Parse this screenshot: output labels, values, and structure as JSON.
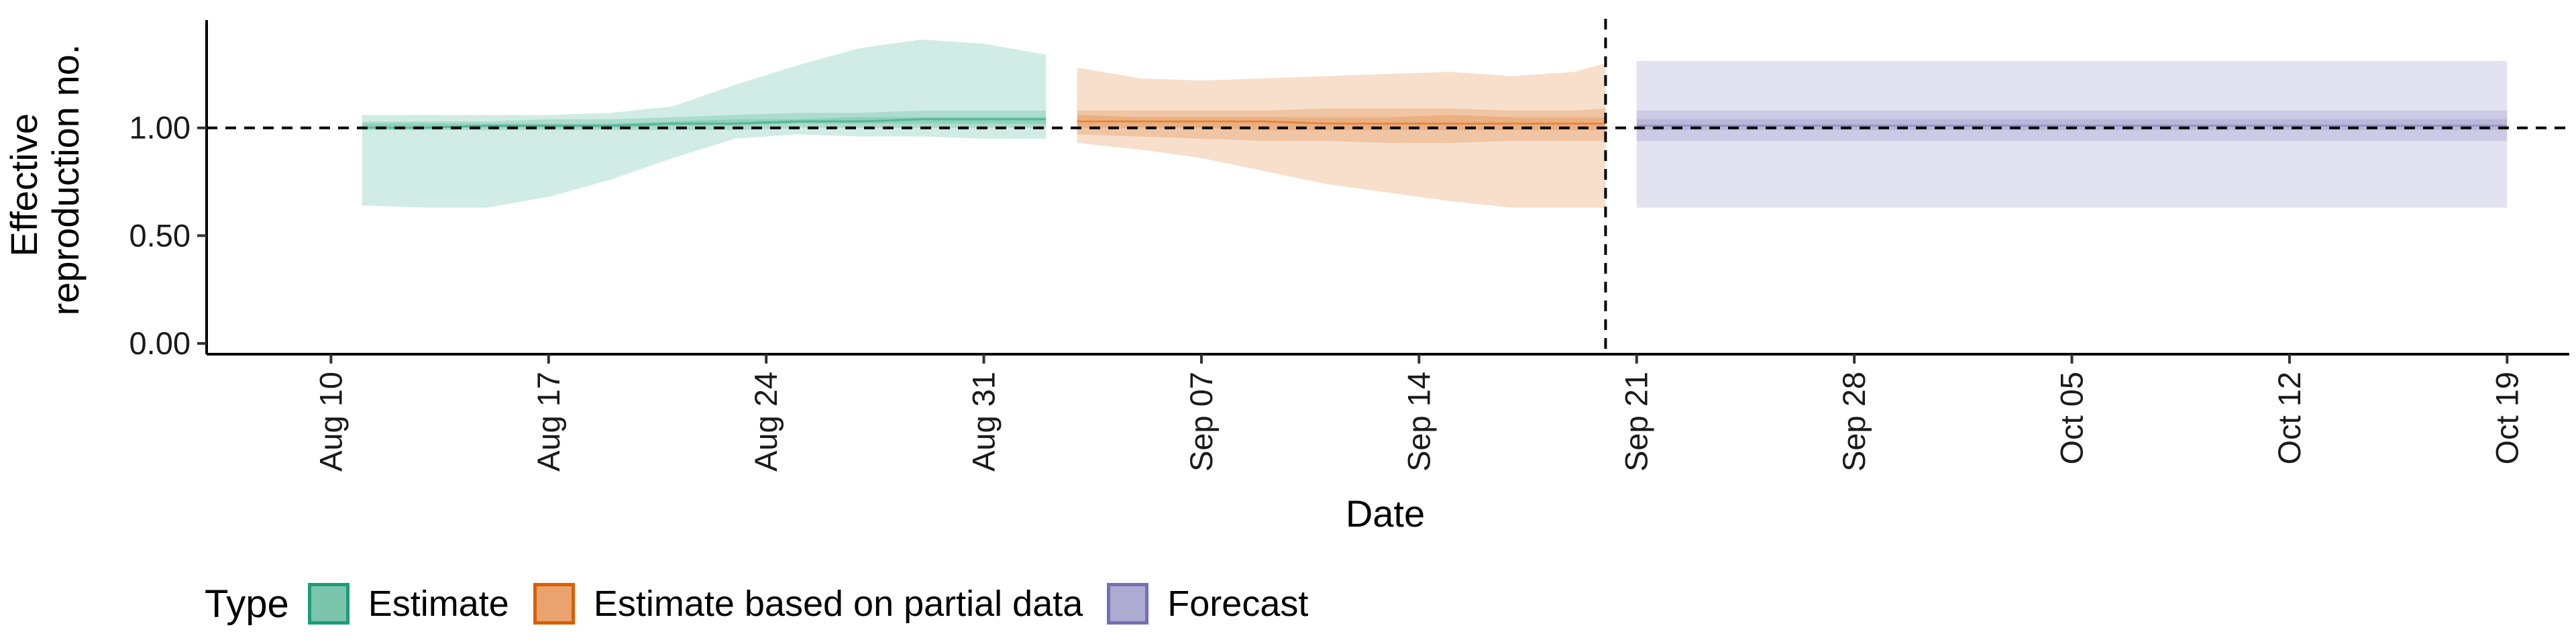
{
  "chart_data": {
    "type": "area",
    "xlabel": "Date",
    "ylabel_lines": [
      "Effective",
      "reproduction no."
    ],
    "yticks": [
      "0.00",
      "0.50",
      "1.00"
    ],
    "ytick_values": [
      0,
      0.5,
      1.0
    ],
    "ylim": [
      -0.05,
      1.5
    ],
    "xlim": [
      "2020-08-06",
      "2020-10-21"
    ],
    "xticks": [
      {
        "date": "2020-08-10",
        "label": "Aug 10"
      },
      {
        "date": "2020-08-17",
        "label": "Aug 17"
      },
      {
        "date": "2020-08-24",
        "label": "Aug 24"
      },
      {
        "date": "2020-08-31",
        "label": "Aug 31"
      },
      {
        "date": "2020-09-07",
        "label": "Sep 07"
      },
      {
        "date": "2020-09-14",
        "label": "Sep 14"
      },
      {
        "date": "2020-09-21",
        "label": "Sep 21"
      },
      {
        "date": "2020-09-28",
        "label": "Sep 28"
      },
      {
        "date": "2020-10-05",
        "label": "Oct 05"
      },
      {
        "date": "2020-10-12",
        "label": "Oct 12"
      },
      {
        "date": "2020-10-19",
        "label": "Oct 19"
      }
    ],
    "reference_hline": 1.0,
    "reference_vline": "2020-09-20",
    "legend": {
      "title": "Type",
      "position": "bottom-left",
      "items": [
        {
          "label": "Estimate",
          "fill": "#7cc5ad",
          "border": "#1b9e77"
        },
        {
          "label": "Estimate based on partial data",
          "fill": "#eaa36e",
          "border": "#d95f02"
        },
        {
          "label": "Forecast",
          "fill": "#aeabd2",
          "border": "#7570b3"
        }
      ]
    },
    "series": [
      {
        "name": "Estimate",
        "color": "#1b9e77",
        "x": [
          "2020-08-11",
          "2020-08-13",
          "2020-08-15",
          "2020-08-17",
          "2020-08-19",
          "2020-08-21",
          "2020-08-23",
          "2020-08-25",
          "2020-08-27",
          "2020-08-29",
          "2020-08-31",
          "2020-09-02"
        ],
        "median": [
          1.0,
          1.0,
          1.01,
          1.01,
          1.01,
          1.02,
          1.02,
          1.03,
          1.03,
          1.04,
          1.04,
          1.04
        ],
        "lower90": [
          0.64,
          0.63,
          0.63,
          0.68,
          0.76,
          0.86,
          0.95,
          0.97,
          0.96,
          0.96,
          0.95,
          0.95
        ],
        "upper90": [
          1.06,
          1.06,
          1.06,
          1.06,
          1.07,
          1.1,
          1.2,
          1.29,
          1.37,
          1.41,
          1.39,
          1.34
        ],
        "lower50": [
          0.99,
          0.99,
          0.99,
          0.99,
          0.99,
          0.99,
          0.99,
          1.0,
          1.0,
          1.0,
          1.0,
          1.0
        ],
        "upper50": [
          1.03,
          1.03,
          1.03,
          1.04,
          1.04,
          1.05,
          1.06,
          1.07,
          1.07,
          1.08,
          1.08,
          1.08
        ],
        "lower20": [
          1.0,
          1.0,
          1.0,
          1.0,
          1.0,
          1.01,
          1.01,
          1.02,
          1.02,
          1.02,
          1.02,
          1.02
        ],
        "upper20": [
          1.02,
          1.02,
          1.02,
          1.02,
          1.02,
          1.03,
          1.04,
          1.04,
          1.05,
          1.05,
          1.05,
          1.05
        ]
      },
      {
        "name": "Estimate based on partial data",
        "color": "#d95f02",
        "x": [
          "2020-09-03",
          "2020-09-05",
          "2020-09-07",
          "2020-09-09",
          "2020-09-11",
          "2020-09-13",
          "2020-09-15",
          "2020-09-17",
          "2020-09-19",
          "2020-09-20"
        ],
        "median": [
          1.03,
          1.03,
          1.03,
          1.03,
          1.02,
          1.02,
          1.02,
          1.02,
          1.02,
          1.02
        ],
        "lower90": [
          0.93,
          0.9,
          0.86,
          0.8,
          0.74,
          0.7,
          0.66,
          0.63,
          0.63,
          0.63
        ],
        "upper90": [
          1.28,
          1.23,
          1.22,
          1.23,
          1.24,
          1.25,
          1.26,
          1.24,
          1.26,
          1.3
        ],
        "lower50": [
          0.97,
          0.96,
          0.95,
          0.94,
          0.94,
          0.93,
          0.93,
          0.94,
          0.94,
          0.94
        ],
        "upper50": [
          1.08,
          1.08,
          1.08,
          1.08,
          1.09,
          1.09,
          1.09,
          1.08,
          1.08,
          1.09
        ],
        "lower20": [
          1.0,
          1.0,
          1.0,
          0.99,
          0.99,
          0.99,
          0.99,
          0.99,
          0.99,
          0.99
        ],
        "upper20": [
          1.06,
          1.05,
          1.05,
          1.05,
          1.05,
          1.05,
          1.06,
          1.05,
          1.05,
          1.05
        ]
      },
      {
        "name": "Forecast",
        "color": "#7570b3",
        "x": [
          "2020-09-21",
          "2020-10-19"
        ],
        "median": [
          1.01,
          1.01
        ],
        "lower90": [
          0.63,
          0.63
        ],
        "upper90": [
          1.31,
          1.31
        ],
        "lower50": [
          0.94,
          0.94
        ],
        "upper50": [
          1.08,
          1.08
        ],
        "lower20": [
          0.99,
          0.99
        ],
        "upper20": [
          1.04,
          1.04
        ]
      }
    ]
  }
}
